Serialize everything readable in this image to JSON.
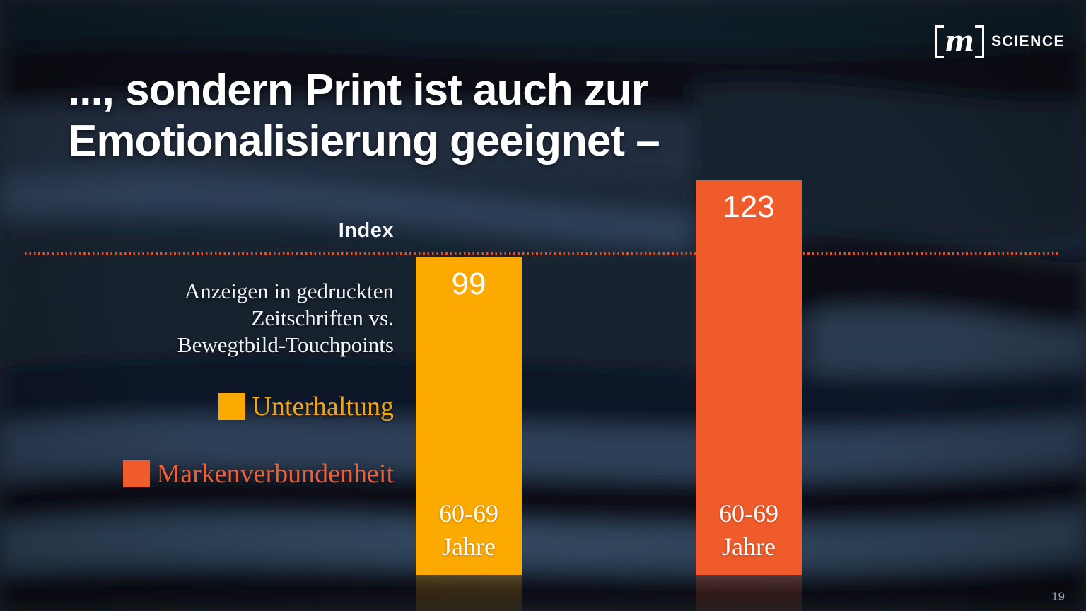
{
  "title": {
    "line1": "..., sondern Print ist auch zur",
    "line2": "Emotionalisierung geeignet –"
  },
  "logo": {
    "m": "m",
    "text": "SCIENCE"
  },
  "page_number": "19",
  "chart_data": {
    "type": "bar",
    "axis_label": "Index",
    "baseline_value": 100,
    "baseline_line_style": "dotted",
    "accent_line_color": "#E4511F",
    "description_lines": [
      "Anzeigen in gedruckten",
      "Zeitschriften vs.",
      "Bewegtbild-Touchpoints"
    ],
    "categories": [
      "60-69 Jahre"
    ],
    "series": [
      {
        "name": "Unterhaltung",
        "values": [
          99
        ]
      },
      {
        "name": "Markenverbundenheit",
        "values": [
          123
        ]
      }
    ],
    "legend": [
      {
        "label": "Unterhaltung",
        "color": "#FCA902",
        "text_color": "#F2A513"
      },
      {
        "label": "Markenverbundenheit",
        "color": "#EF5B2B",
        "text_color": "#E9603A"
      }
    ],
    "bars": [
      {
        "series": "Unterhaltung",
        "label": "60-69 Jahre",
        "value": 99,
        "color": "#FCA902"
      },
      {
        "series": "Markenverbundenheit",
        "label": "60-69 Jahre",
        "value": 123,
        "color": "#EF5B2B"
      }
    ],
    "legend_position": "left",
    "grid": false
  },
  "background": {
    "description": "dark navy photo of stacked open magazines",
    "base_color": "#182433"
  }
}
